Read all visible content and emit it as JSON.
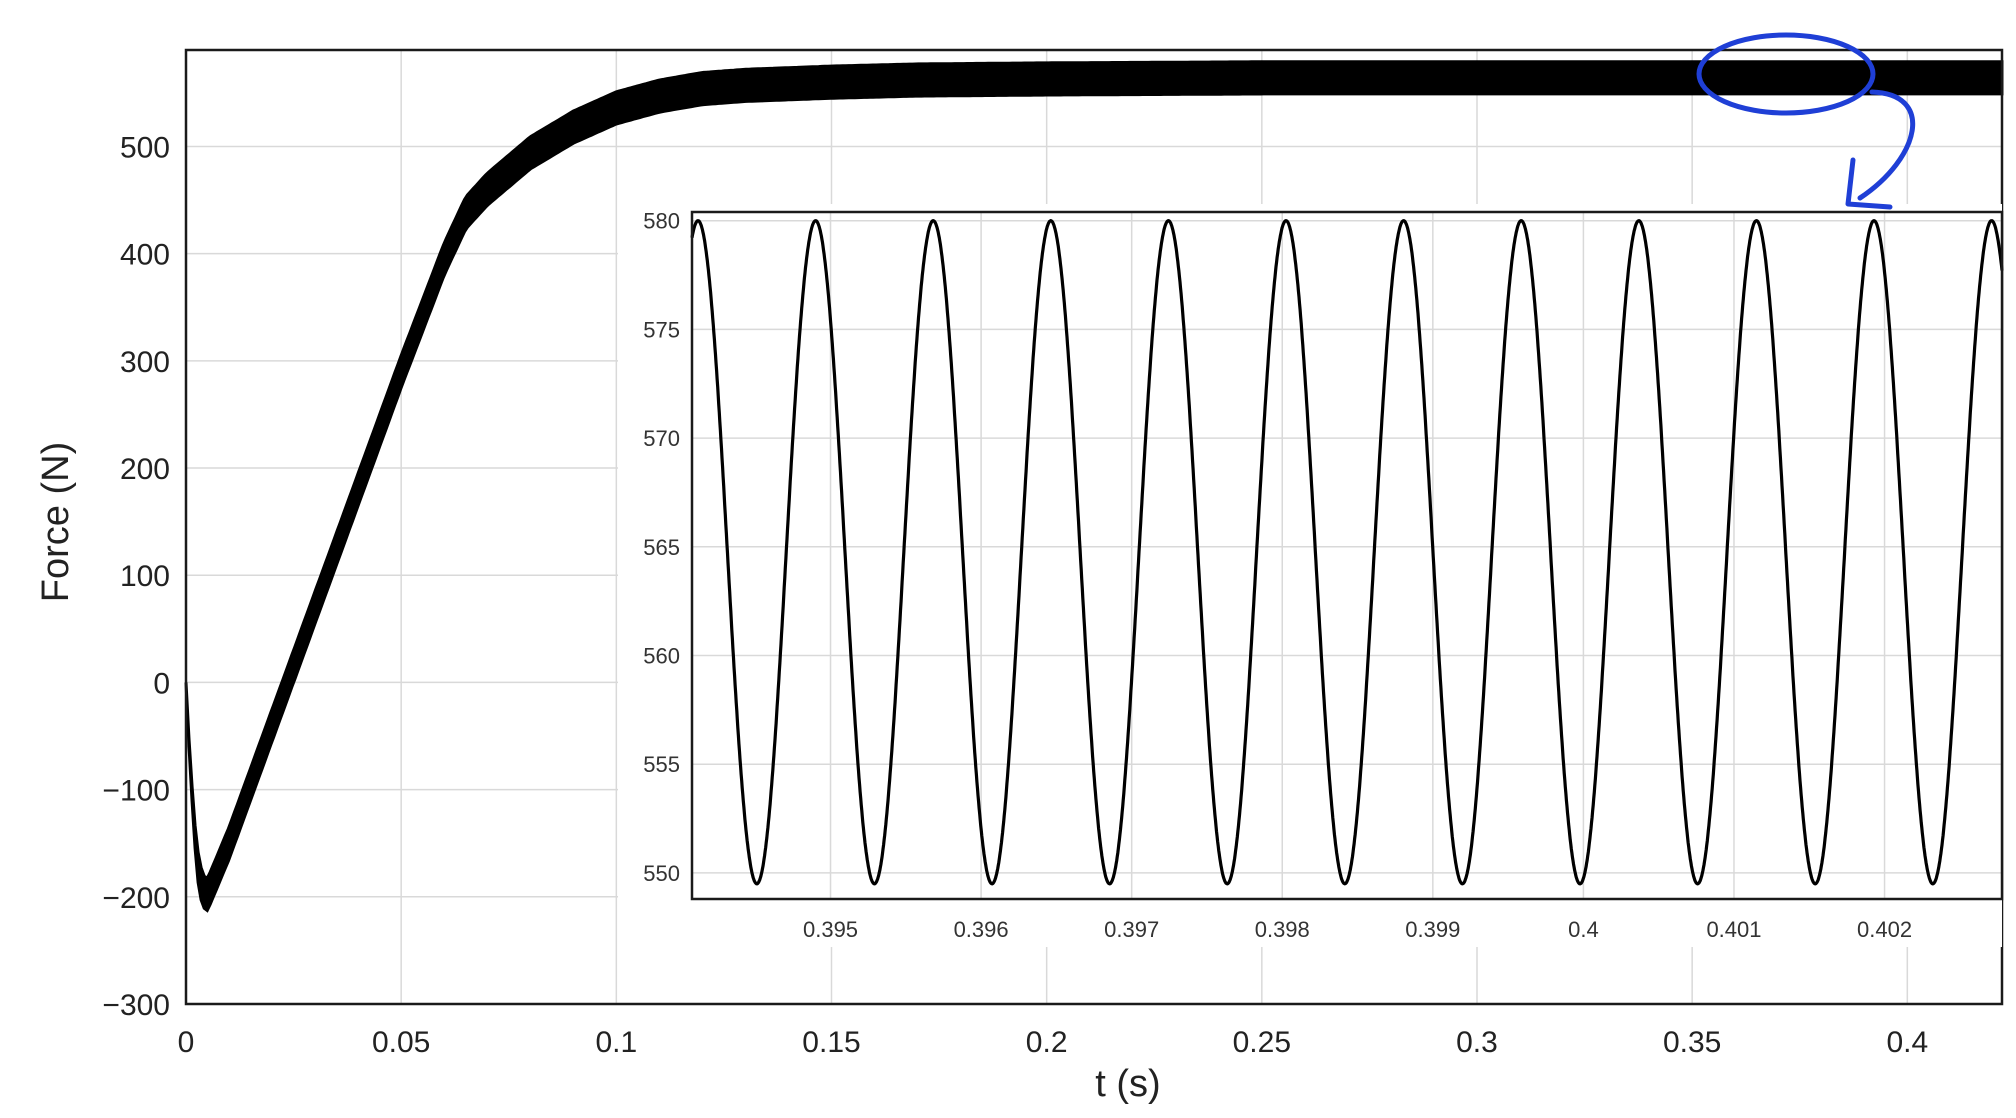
{
  "chart_data": [
    {
      "type": "line",
      "role": "main",
      "xlabel": "t (s)",
      "ylabel": "Force  (N)",
      "xlim": [
        0,
        0.422
      ],
      "ylim": [
        -300,
        590
      ],
      "xticks": [
        0,
        0.05,
        0.1,
        0.15,
        0.2,
        0.25,
        0.3,
        0.35,
        0.4
      ],
      "xtick_labels": [
        "0",
        "0.05",
        "0.1",
        "0.15",
        "0.2",
        "0.25",
        "0.3",
        "0.35",
        "0.4"
      ],
      "yticks": [
        -300,
        -200,
        -100,
        0,
        100,
        200,
        300,
        400,
        500
      ],
      "ytick_labels": [
        "−300",
        "−200",
        "−100",
        "0",
        "100",
        "200",
        "300",
        "400",
        "500"
      ],
      "grid": true,
      "series": [
        {
          "color": "#000000",
          "ripple_amplitude": 15,
          "x": [
            0,
            0.001,
            0.002,
            0.003,
            0.004,
            0.005,
            0.01,
            0.02,
            0.03,
            0.04,
            0.05,
            0.06,
            0.065,
            0.07,
            0.08,
            0.09,
            0.1,
            0.11,
            0.12,
            0.13,
            0.15,
            0.17,
            0.2,
            0.25,
            0.3,
            0.35,
            0.4,
            0.422
          ],
          "y": [
            0,
            -80,
            -140,
            -180,
            -195,
            -198,
            -150,
            -40,
            70,
            180,
            290,
            395,
            438,
            460,
            494,
            518,
            536,
            547,
            554,
            557,
            560,
            562,
            563,
            564,
            564,
            564,
            564,
            564
          ]
        }
      ]
    },
    {
      "type": "line",
      "role": "inset",
      "xlim": [
        0.39408,
        0.40278
      ],
      "ylim": [
        548.8,
        580.4
      ],
      "xticks": [
        0.395,
        0.396,
        0.397,
        0.398,
        0.399,
        0.4,
        0.401,
        0.402
      ],
      "xtick_labels": [
        "0.395",
        "0.396",
        "0.397",
        "0.398",
        "0.399",
        "0.4",
        "0.401",
        "0.402"
      ],
      "yticks": [
        550,
        555,
        560,
        565,
        570,
        575,
        580
      ],
      "ytick_labels": [
        "550",
        "555",
        "560",
        "565",
        "570",
        "575",
        "580"
      ],
      "grid": true,
      "series": [
        {
          "color": "#000000",
          "shape": "periodic ripple",
          "min": 549.5,
          "max": 580,
          "period": 0.000781,
          "peak_x": [
            0.39412,
            0.39495,
            0.39573,
            0.39651,
            0.39729,
            0.39807,
            0.39885,
            0.39964,
            0.40042,
            0.4012,
            0.40198,
            0.40276
          ],
          "trough_x": [
            0.39454,
            0.39532,
            0.3961,
            0.39688,
            0.39766,
            0.39844,
            0.39923,
            0.40001,
            0.40079,
            0.40157,
            0.40235
          ]
        }
      ]
    }
  ],
  "annotations": {
    "zoom_ellipse_color": "#1f3fd6",
    "zoom_region_x": [
      0.355,
      0.395
    ],
    "zoom_region_y": [
      548,
      580
    ]
  }
}
